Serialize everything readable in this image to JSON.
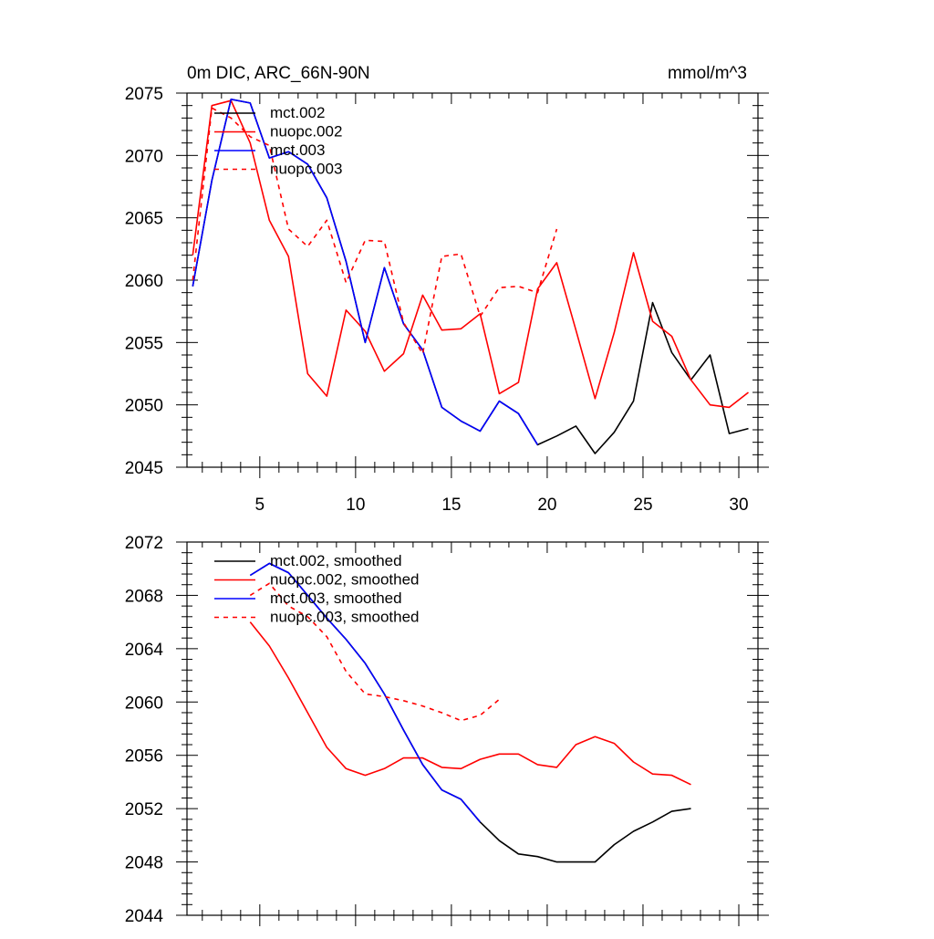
{
  "colors": {
    "black": "#000000",
    "red": "#ff0000",
    "blue": "#0000ff"
  },
  "chart_data": [
    {
      "type": "line",
      "title_left": "0m DIC, ARC_66N-90N",
      "title_right": "mmol/m^3",
      "xlim": [
        1.2,
        31
      ],
      "ylim": [
        2045,
        2075
      ],
      "xticks": [
        5,
        10,
        15,
        20,
        25,
        30
      ],
      "yticks": [
        2045,
        2050,
        2055,
        2060,
        2065,
        2070,
        2075
      ],
      "xtick_labels": [
        "5",
        "10",
        "15",
        "20",
        "25",
        "30"
      ],
      "ytick_labels": [
        "2045",
        "2050",
        "2055",
        "2060",
        "2065",
        "2070",
        "2075"
      ],
      "legend": "top-left",
      "series": [
        {
          "name": "mct.002",
          "color": "black",
          "dash": "solid",
          "x": [
            1.5,
            2.5,
            3.5,
            4.5,
            5.5,
            6.5,
            7.5,
            8.5,
            9.5,
            10.5,
            11.5,
            12.5,
            13.5,
            14.5,
            15.5,
            16.5,
            17.5,
            18.5,
            19.5,
            20.5,
            21.5,
            22.5,
            23.5,
            24.5,
            25.5,
            26.5,
            27.5,
            28.5,
            29.5,
            30.5
          ],
          "y": [
            2059.5,
            2068,
            2074.5,
            2074.2,
            2069.8,
            2070.3,
            2069.3,
            2066.6,
            2061.5,
            2055,
            2061,
            2056.5,
            2054.4,
            2049.8,
            2048.7,
            2047.9,
            2050.3,
            2049.3,
            2046.8,
            2047.5,
            2048.3,
            2046.1,
            2047.8,
            2050.3,
            2058.2,
            2054.2,
            2052,
            2054,
            2047.7,
            2048.1
          ]
        },
        {
          "name": "nuopc.002",
          "color": "red",
          "dash": "solid",
          "x": [
            1.5,
            2.5,
            3.5,
            4.5,
            5.5,
            6.5,
            7.5,
            8.5,
            9.5,
            10.5,
            11.5,
            12.5,
            13.5,
            14.5,
            15.5,
            16.5,
            17.5,
            18.5,
            19.5,
            20.5,
            21.5,
            22.5,
            23.5,
            24.5,
            25.5,
            26.5,
            27.5,
            28.5,
            29.5,
            30.5
          ],
          "y": [
            2062,
            2074,
            2074.4,
            2071,
            2064.8,
            2061.9,
            2052.5,
            2050.7,
            2057.6,
            2055.9,
            2052.7,
            2054.1,
            2058.8,
            2056,
            2056.1,
            2057.3,
            2050.9,
            2051.8,
            2059.3,
            2061.4,
            2056,
            2050.5,
            2055.8,
            2062.2,
            2056.7,
            2055.5,
            2052,
            2050,
            2049.8,
            2051
          ]
        },
        {
          "name": "mct.003",
          "color": "blue",
          "dash": "solid",
          "x": [
            1.5,
            2.5,
            3.5,
            4.5,
            5.5,
            6.5,
            7.5,
            8.5,
            9.5,
            10.5,
            11.5,
            12.5,
            13.5,
            14.5,
            15.5,
            16.5,
            17.5,
            18.5,
            19.5
          ],
          "y": [
            2059.5,
            2068,
            2074.5,
            2074.2,
            2069.8,
            2070.3,
            2069.3,
            2066.6,
            2061.5,
            2055,
            2061,
            2056.5,
            2054.4,
            2049.8,
            2048.7,
            2047.9,
            2050.3,
            2049.3,
            2046.8
          ]
        },
        {
          "name": "nuopc.003",
          "color": "red",
          "dash": "dashed",
          "x": [
            1.5,
            2.5,
            3.5,
            4.5,
            5.5,
            6.5,
            7.5,
            8.5,
            9.5,
            10.5,
            11.5,
            12.5,
            13.5,
            14.5,
            15.5,
            16.5,
            17.5,
            18.5,
            19.5,
            20.5
          ],
          "y": [
            2060,
            2073.8,
            2073,
            2071.5,
            2070.8,
            2064.1,
            2062.7,
            2064.8,
            2059.8,
            2063.2,
            2063.1,
            2056.6,
            2054.1,
            2061.9,
            2062.1,
            2057.1,
            2059.4,
            2059.5,
            2059,
            2064.1
          ]
        }
      ]
    },
    {
      "type": "line",
      "title_left": "",
      "title_right": "",
      "xlim": [
        1.2,
        31
      ],
      "ylim": [
        2044,
        2072
      ],
      "xticks": [
        5,
        10,
        15,
        20,
        25,
        30
      ],
      "yticks": [
        2044,
        2048,
        2052,
        2056,
        2060,
        2064,
        2068,
        2072
      ],
      "xtick_labels": [],
      "ytick_labels": [
        "2044",
        "2048",
        "2052",
        "2056",
        "2060",
        "2064",
        "2068",
        "2072"
      ],
      "legend": "top-left",
      "series": [
        {
          "name": "mct.002, smoothed",
          "color": "black",
          "dash": "solid",
          "x": [
            4.5,
            5.5,
            6.5,
            7.5,
            8.5,
            9.5,
            10.5,
            11.5,
            12.5,
            13.5,
            14.5,
            15.5,
            16.5,
            17.5,
            18.5,
            19.5,
            20.5,
            21.5,
            22.5,
            23.5,
            24.5,
            25.5,
            26.5,
            27.5
          ],
          "y": [
            2069.5,
            2070.4,
            2069.7,
            2068,
            2066.3,
            2064.7,
            2062.9,
            2060.6,
            2057.9,
            2055.3,
            2053.4,
            2052.7,
            2051,
            2049.6,
            2048.6,
            2048.4,
            2048,
            2048,
            2048,
            2049.3,
            2050.3,
            2051,
            2051.8,
            2052
          ]
        },
        {
          "name": "nuopc.002, smoothed",
          "color": "red",
          "dash": "solid",
          "x": [
            4.5,
            5.5,
            6.5,
            7.5,
            8.5,
            9.5,
            10.5,
            11.5,
            12.5,
            13.5,
            14.5,
            15.5,
            16.5,
            17.5,
            18.5,
            19.5,
            20.5,
            21.5,
            22.5,
            23.5,
            24.5,
            25.5,
            26.5,
            27.5
          ],
          "y": [
            2066,
            2064.2,
            2061.8,
            2059.2,
            2056.6,
            2055,
            2054.5,
            2055,
            2055.8,
            2055.8,
            2055.1,
            2055,
            2055.7,
            2056.1,
            2056.1,
            2055.3,
            2055.1,
            2056.8,
            2057.4,
            2056.9,
            2055.5,
            2054.6,
            2054.5,
            2053.8
          ]
        },
        {
          "name": "mct.003, smoothed",
          "color": "blue",
          "dash": "solid",
          "x": [
            4.5,
            5.5,
            6.5,
            7.5,
            8.5,
            9.5,
            10.5,
            11.5,
            12.5,
            13.5,
            14.5,
            15.5,
            16.5
          ],
          "y": [
            2069.5,
            2070.4,
            2069.7,
            2068,
            2066.3,
            2064.7,
            2062.9,
            2060.6,
            2057.9,
            2055.3,
            2053.4,
            2052.7,
            2051
          ]
        },
        {
          "name": "nuopc.003, smoothed",
          "color": "red",
          "dash": "dashed",
          "x": [
            4.5,
            5.5,
            6.5,
            7.5,
            8.5,
            9.5,
            10.5,
            11.5,
            12.5,
            13.5,
            14.5,
            15.5,
            16.5,
            17.5
          ],
          "y": [
            2068,
            2068.9,
            2067.2,
            2066.4,
            2064.9,
            2062.3,
            2060.6,
            2060.4,
            2060.1,
            2059.7,
            2059.2,
            2058.6,
            2059,
            2060.2
          ]
        }
      ]
    }
  ]
}
